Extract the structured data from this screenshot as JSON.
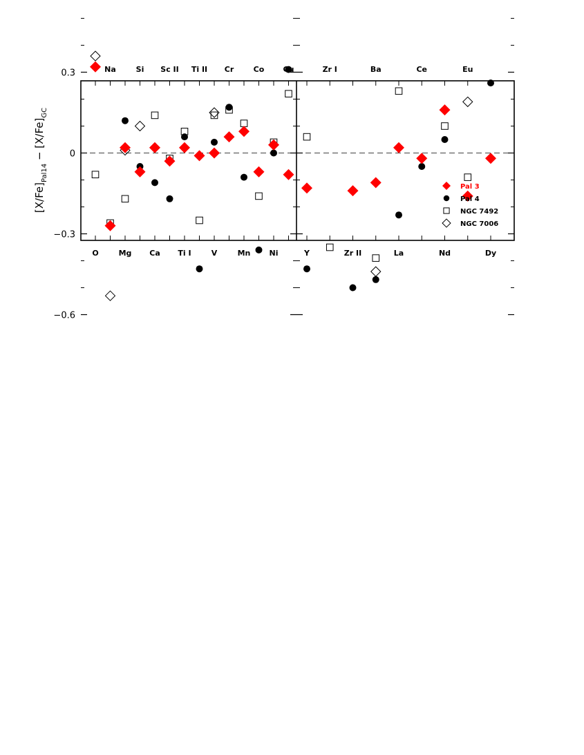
{
  "chart_data": {
    "type": "scatter",
    "ylabel_main": "[X/Fe]",
    "ylabel_sub1": "Pal14",
    "ylabel_mid": "  −  [X/Fe]",
    "ylabel_sub2": "GC",
    "ylim": [
      -0.65,
      0.55
    ],
    "yticks": [
      {
        "v": 0.3,
        "label": "0.3"
      },
      {
        "v": 0.0,
        "label": "0"
      },
      {
        "v": -0.3,
        "label": "−0.3"
      },
      {
        "v": -0.6,
        "label": "−0.6"
      }
    ],
    "grid": false,
    "reference_line": 0,
    "legend_position": "bottom-right",
    "panels": [
      {
        "bottom_labels": [
          "O",
          "Mg",
          "Ca",
          "Ti  I",
          "V",
          "Mn",
          "Ni"
        ],
        "top_labels": [
          "Na",
          "Si",
          "Sc  II",
          "Ti  II",
          "Cr",
          "Co",
          "Cu"
        ],
        "elements": [
          "O",
          "Na",
          "Mg",
          "Si",
          "Ca",
          "Sc II",
          "Ti I",
          "Ti II",
          "V",
          "Cr",
          "Mn",
          "Co",
          "Ni",
          "Cu"
        ],
        "series": [
          {
            "name": "Pal 3",
            "values": [
              0.32,
              -0.27,
              0.02,
              -0.07,
              0.02,
              -0.03,
              0.02,
              -0.01,
              0.0,
              0.06,
              0.08,
              -0.07,
              0.03,
              -0.08
            ]
          },
          {
            "name": "Pal 4",
            "values": [
              null,
              null,
              0.12,
              -0.05,
              -0.11,
              -0.17,
              0.06,
              -0.43,
              0.04,
              0.17,
              -0.09,
              -0.36,
              0.0,
              0.31
            ]
          },
          {
            "name": "NGC 7492",
            "values": [
              -0.08,
              -0.26,
              -0.17,
              null,
              0.14,
              -0.02,
              0.08,
              -0.25,
              0.14,
              0.16,
              0.11,
              -0.16,
              0.04,
              0.22
            ]
          },
          {
            "name": "NGC 7006",
            "values": [
              0.36,
              -0.53,
              0.01,
              0.1,
              0.02,
              null,
              null,
              null,
              0.15,
              null,
              null,
              null,
              0.03,
              null
            ]
          }
        ]
      },
      {
        "bottom_labels": [
          "Y",
          "Zr  II",
          "La",
          "Nd",
          "Dy"
        ],
        "top_labels": [
          "Zr  I",
          "Ba",
          "Ce",
          "Eu"
        ],
        "elements": [
          "Y",
          "Zr I",
          "Zr II",
          "Ba",
          "La",
          "Ce",
          "Nd",
          "Eu",
          "Dy"
        ],
        "series": [
          {
            "name": "Pal 3",
            "values": [
              -0.13,
              null,
              -0.14,
              -0.11,
              0.02,
              -0.02,
              0.16,
              -0.16,
              -0.02
            ]
          },
          {
            "name": "Pal 4",
            "values": [
              -0.43,
              null,
              -0.5,
              -0.47,
              -0.23,
              -0.05,
              0.05,
              null,
              0.26
            ]
          },
          {
            "name": "NGC 7492",
            "values": [
              0.06,
              -0.35,
              null,
              -0.39,
              0.23,
              null,
              0.1,
              -0.09,
              null
            ]
          },
          {
            "name": "NGC 7006",
            "values": [
              null,
              null,
              null,
              -0.44,
              null,
              null,
              null,
              0.19,
              null
            ]
          }
        ]
      }
    ],
    "legend": [
      {
        "name": "Pal 3",
        "color": "#ff0000",
        "marker": "filled-diamond"
      },
      {
        "name": "Pal 4",
        "color": "#000000",
        "marker": "filled-circle"
      },
      {
        "name": "NGC 7492",
        "color": "#000000",
        "marker": "open-square"
      },
      {
        "name": "NGC 7006",
        "color": "#000000",
        "marker": "open-diamond"
      }
    ]
  }
}
